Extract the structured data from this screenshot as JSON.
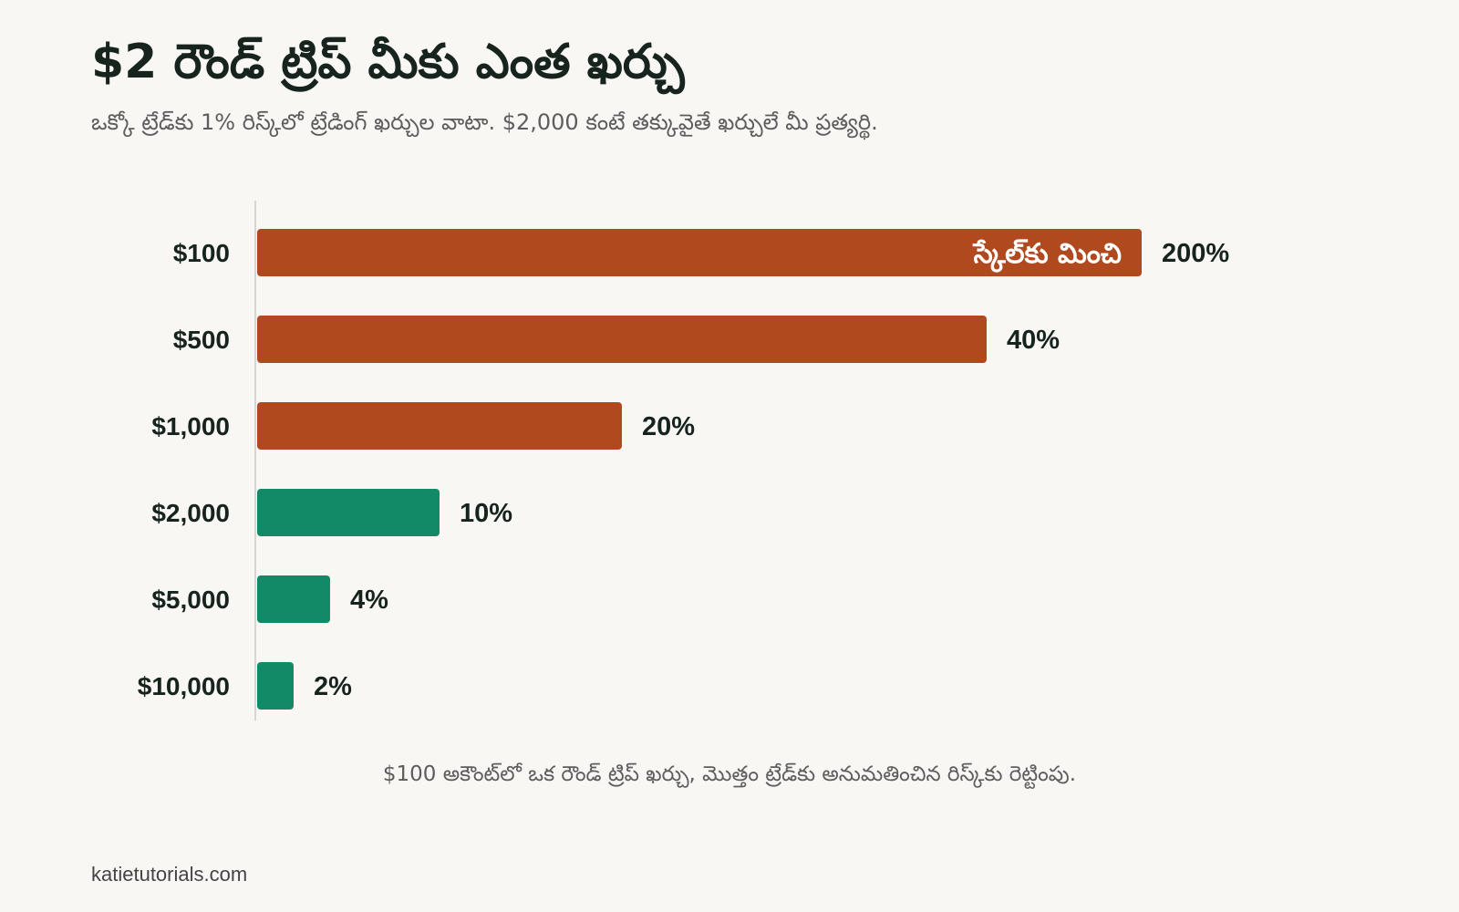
{
  "title": "$2 రౌండ్ ట్రిప్ మీకు ఎంత ఖర్చు",
  "subtitle": "ఒక్కో ట్రేడ్‌కు 1% రిస్క్‌లో ట్రేడింగ్ ఖర్చుల వాటా. $2,000 కంటే తక్కువైతే ఖర్చులే మీ ప్రత్యర్థి.",
  "caption": "$100 అకౌంట్‌లో ఒక రౌండ్ ట్రిప్ ఖర్చు, మొత్తం ట్రేడ్‌కు అనుమతించిన రిస్క్‌కు రెట్టింపు.",
  "source": "katietutorials.com",
  "colors": {
    "high": "#b1491e",
    "low": "#128a68",
    "text": "#17241d",
    "muted": "#5d5d5d",
    "axis": "#cccccc"
  },
  "chart_data": {
    "type": "bar",
    "orientation": "horizontal",
    "categories": [
      "$100",
      "$500",
      "$1,000",
      "$2,000",
      "$5,000",
      "$10,000"
    ],
    "values": [
      200,
      40,
      20,
      10,
      4,
      2
    ],
    "value_labels": [
      "200%",
      "40%",
      "20%",
      "10%",
      "4%",
      "2%"
    ],
    "bar_colors": [
      "#b1491e",
      "#b1491e",
      "#b1491e",
      "#128a68",
      "#128a68",
      "#128a68"
    ],
    "display_max": 48,
    "clipped_note": "స్కేల్‌కు మించి",
    "unit": "%",
    "grid": false
  }
}
